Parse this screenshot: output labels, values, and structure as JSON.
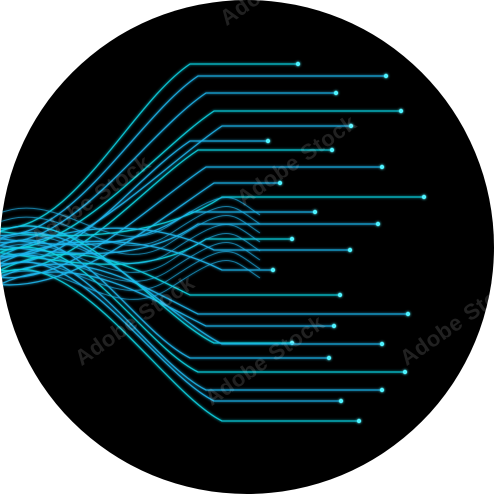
{
  "image": {
    "description_colors": {
      "background": "#ffffff",
      "disc": "#000000",
      "strand_primary": "#1fb8f0",
      "strand_secondary": "#12d6e6",
      "node_glow": "#4ff3ff"
    },
    "watermark_text": "Adobe Stock"
  }
}
